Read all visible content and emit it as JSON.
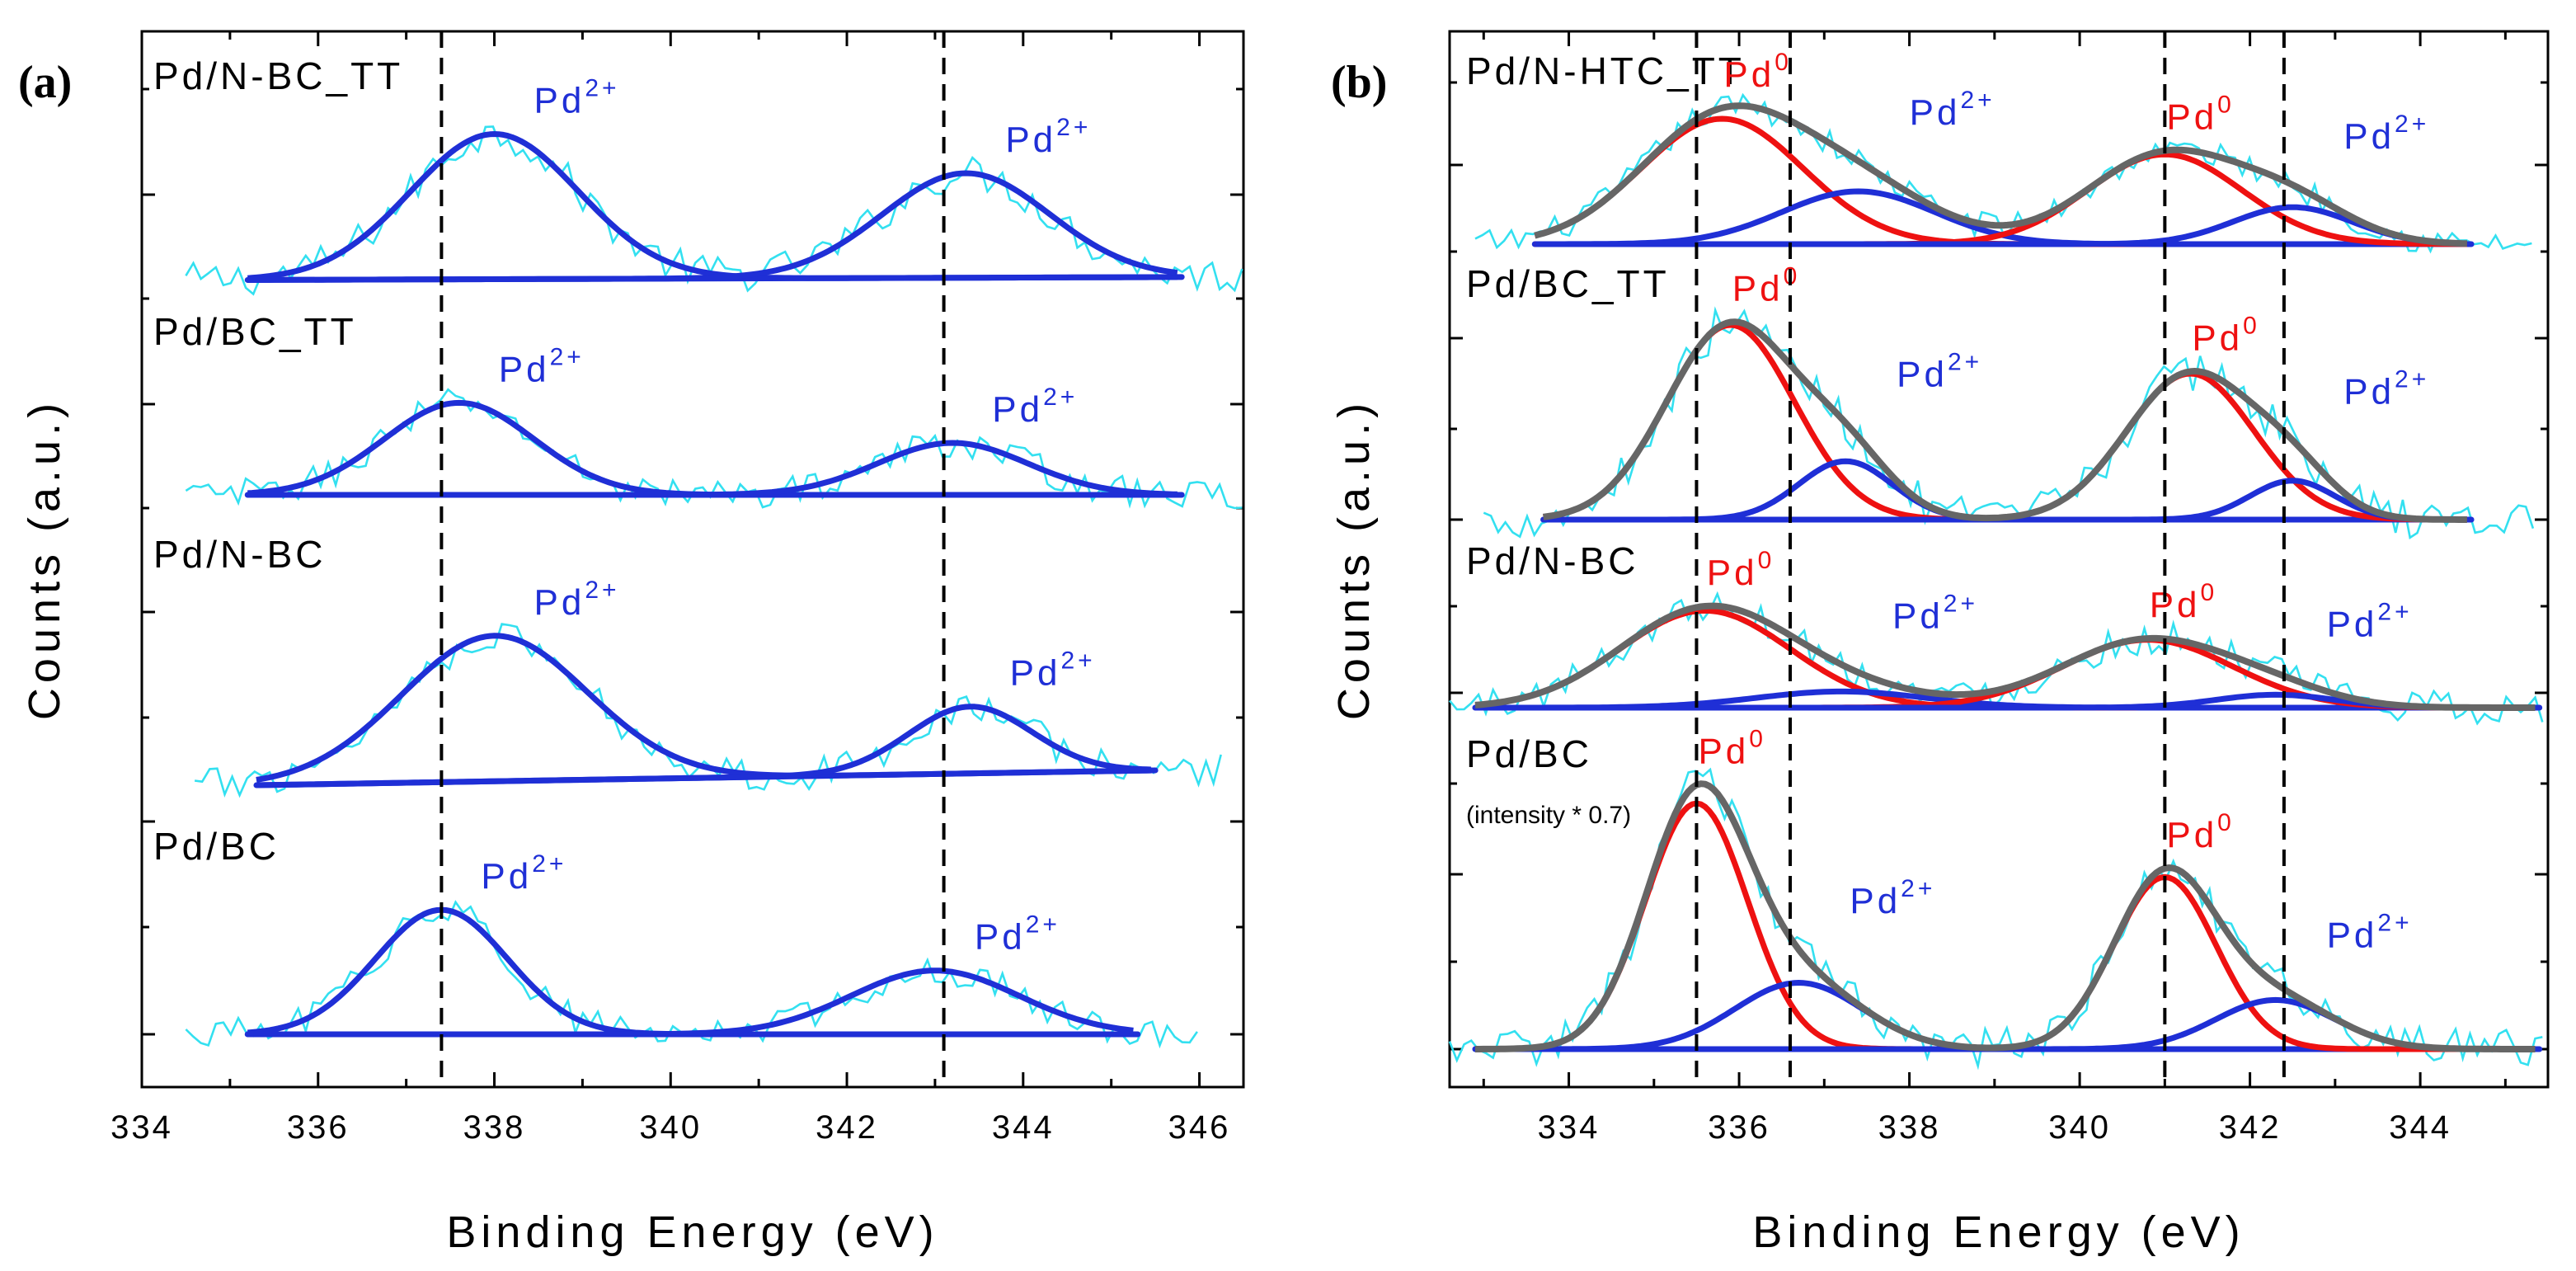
{
  "chart_data": [
    {
      "type": "line",
      "panel": "(a)",
      "xlabel": "Binding Energy (eV)",
      "ylabel": "Counts (a.u.)",
      "xlim": [
        334,
        346.5
      ],
      "xticks": [
        334,
        336,
        338,
        340,
        342,
        344,
        346
      ],
      "xtick_labels": [
        "334",
        "336",
        "338",
        "340",
        "342",
        "344",
        "346"
      ],
      "reference_lines_eV": [
        337.4,
        343.1
      ],
      "series_colors": {
        "raw": "#33e0f0",
        "fit": "#1f2fd6"
      },
      "spectra": [
        {
          "sample": "Pd/N-BC_TT",
          "range": [
            335.2,
            345.8
          ],
          "baseline": [
            0.06,
            0.08
          ],
          "noise": 0.12,
          "peaks": [
            {
              "species": "Pd",
              "charge": "2+",
              "center": 338.0,
              "height": 1.0,
              "width": 0.95,
              "color": "#1f2fd6"
            },
            {
              "species": "Pd",
              "charge": "2+",
              "center": 343.35,
              "height": 0.72,
              "width": 0.95,
              "color": "#1f2fd6"
            }
          ]
        },
        {
          "sample": "Pd/BC_TT",
          "range": [
            335.2,
            345.8
          ],
          "baseline": [
            0.0,
            0.0
          ],
          "noise": 0.1,
          "peaks": [
            {
              "species": "Pd",
              "charge": "2+",
              "center": 337.6,
              "height": 0.62,
              "width": 0.85,
              "color": "#1f2fd6"
            },
            {
              "species": "Pd",
              "charge": "2+",
              "center": 343.2,
              "height": 0.35,
              "width": 0.85,
              "color": "#1f2fd6"
            }
          ]
        },
        {
          "sample": "Pd/N-BC",
          "range": [
            335.3,
            345.5
          ],
          "baseline": [
            0.0,
            0.1
          ],
          "noise": 0.11,
          "peaks": [
            {
              "species": "Pd",
              "charge": "2+",
              "center": 338.0,
              "height": 0.98,
              "width": 1.05,
              "color": "#1f2fd6"
            },
            {
              "species": "Pd",
              "charge": "2+",
              "center": 343.4,
              "height": 0.45,
              "width": 0.7,
              "color": "#1f2fd6"
            }
          ]
        },
        {
          "sample": "Pd/BC",
          "range": [
            335.2,
            345.3
          ],
          "baseline": [
            0.0,
            0.0
          ],
          "noise": 0.1,
          "peaks": [
            {
              "species": "Pd",
              "charge": "2+",
              "center": 337.4,
              "height": 0.82,
              "width": 0.75,
              "color": "#1f2fd6"
            },
            {
              "species": "Pd",
              "charge": "2+",
              "center": 343.0,
              "height": 0.42,
              "width": 0.95,
              "color": "#1f2fd6"
            }
          ]
        }
      ]
    },
    {
      "type": "line",
      "panel": "(b)",
      "xlabel": "Binding Energy (eV)",
      "ylabel": "Counts (a.u.)",
      "xlim": [
        332.6,
        345.5
      ],
      "xticks": [
        334,
        336,
        338,
        340,
        342,
        344
      ],
      "xtick_labels": [
        "334",
        "336",
        "338",
        "340",
        "342",
        "344"
      ],
      "reference_lines_eV": [
        335.5,
        336.6,
        341.0,
        342.4
      ],
      "series_colors": {
        "raw": "#33e0f0",
        "envelope": "#666666",
        "pd0": "#ee1111",
        "pd2": "#1f2fd6"
      },
      "spectra": [
        {
          "sample": "Pd/N-HTC_TT",
          "note": "",
          "range": [
            333.6,
            344.6
          ],
          "baseline": [
            0.0,
            0.0
          ],
          "noise": 0.1,
          "peaks": [
            {
              "species": "Pd",
              "charge": "0",
              "center": 335.8,
              "height": 0.95,
              "width": 0.95,
              "color": "#ee1111"
            },
            {
              "species": "Pd",
              "charge": "2+",
              "center": 337.4,
              "height": 0.4,
              "width": 0.9,
              "color": "#1f2fd6"
            },
            {
              "species": "Pd",
              "charge": "0",
              "center": 341.0,
              "height": 0.68,
              "width": 0.9,
              "color": "#ee1111"
            },
            {
              "species": "Pd",
              "charge": "2+",
              "center": 342.5,
              "height": 0.28,
              "width": 0.7,
              "color": "#1f2fd6"
            }
          ]
        },
        {
          "sample": "Pd/BC_TT",
          "note": "",
          "range": [
            333.7,
            344.6
          ],
          "baseline": [
            0.0,
            0.0
          ],
          "noise": 0.1,
          "peaks": [
            {
              "species": "Pd",
              "charge": "0",
              "center": 335.9,
              "height": 1.0,
              "width": 0.75,
              "color": "#ee1111"
            },
            {
              "species": "Pd",
              "charge": "2+",
              "center": 337.25,
              "height": 0.3,
              "width": 0.55,
              "color": "#1f2fd6"
            },
            {
              "species": "Pd",
              "charge": "0",
              "center": 341.3,
              "height": 0.75,
              "width": 0.75,
              "color": "#ee1111"
            },
            {
              "species": "Pd",
              "charge": "2+",
              "center": 342.5,
              "height": 0.2,
              "width": 0.5,
              "color": "#1f2fd6"
            }
          ]
        },
        {
          "sample": "Pd/N-BC",
          "note": "",
          "range": [
            332.9,
            345.4
          ],
          "baseline": [
            0.0,
            0.0
          ],
          "noise": 0.1,
          "peaks": [
            {
              "species": "Pd",
              "charge": "0",
              "center": 335.6,
              "height": 0.6,
              "width": 1.0,
              "color": "#ee1111"
            },
            {
              "species": "Pd",
              "charge": "2+",
              "center": 337.2,
              "height": 0.1,
              "width": 1.0,
              "color": "#1f2fd6"
            },
            {
              "species": "Pd",
              "charge": "0",
              "center": 340.8,
              "height": 0.42,
              "width": 1.0,
              "color": "#ee1111"
            },
            {
              "species": "Pd",
              "charge": "2+",
              "center": 342.3,
              "height": 0.08,
              "width": 0.7,
              "color": "#1f2fd6"
            }
          ]
        },
        {
          "sample": "Pd/BC",
          "note": "(intensity * 0.7)",
          "range": [
            332.9,
            345.4
          ],
          "baseline": [
            0.0,
            0.0
          ],
          "noise": 0.08,
          "peaks": [
            {
              "species": "Pd",
              "charge": "0",
              "center": 335.5,
              "height": 1.0,
              "width": 0.6,
              "color": "#ee1111"
            },
            {
              "species": "Pd",
              "charge": "2+",
              "center": 336.7,
              "height": 0.27,
              "width": 0.75,
              "color": "#1f2fd6"
            },
            {
              "species": "Pd",
              "charge": "0",
              "center": 341.0,
              "height": 0.7,
              "width": 0.6,
              "color": "#ee1111"
            },
            {
              "species": "Pd",
              "charge": "2+",
              "center": 342.3,
              "height": 0.2,
              "width": 0.7,
              "color": "#1f2fd6"
            }
          ]
        }
      ]
    }
  ]
}
